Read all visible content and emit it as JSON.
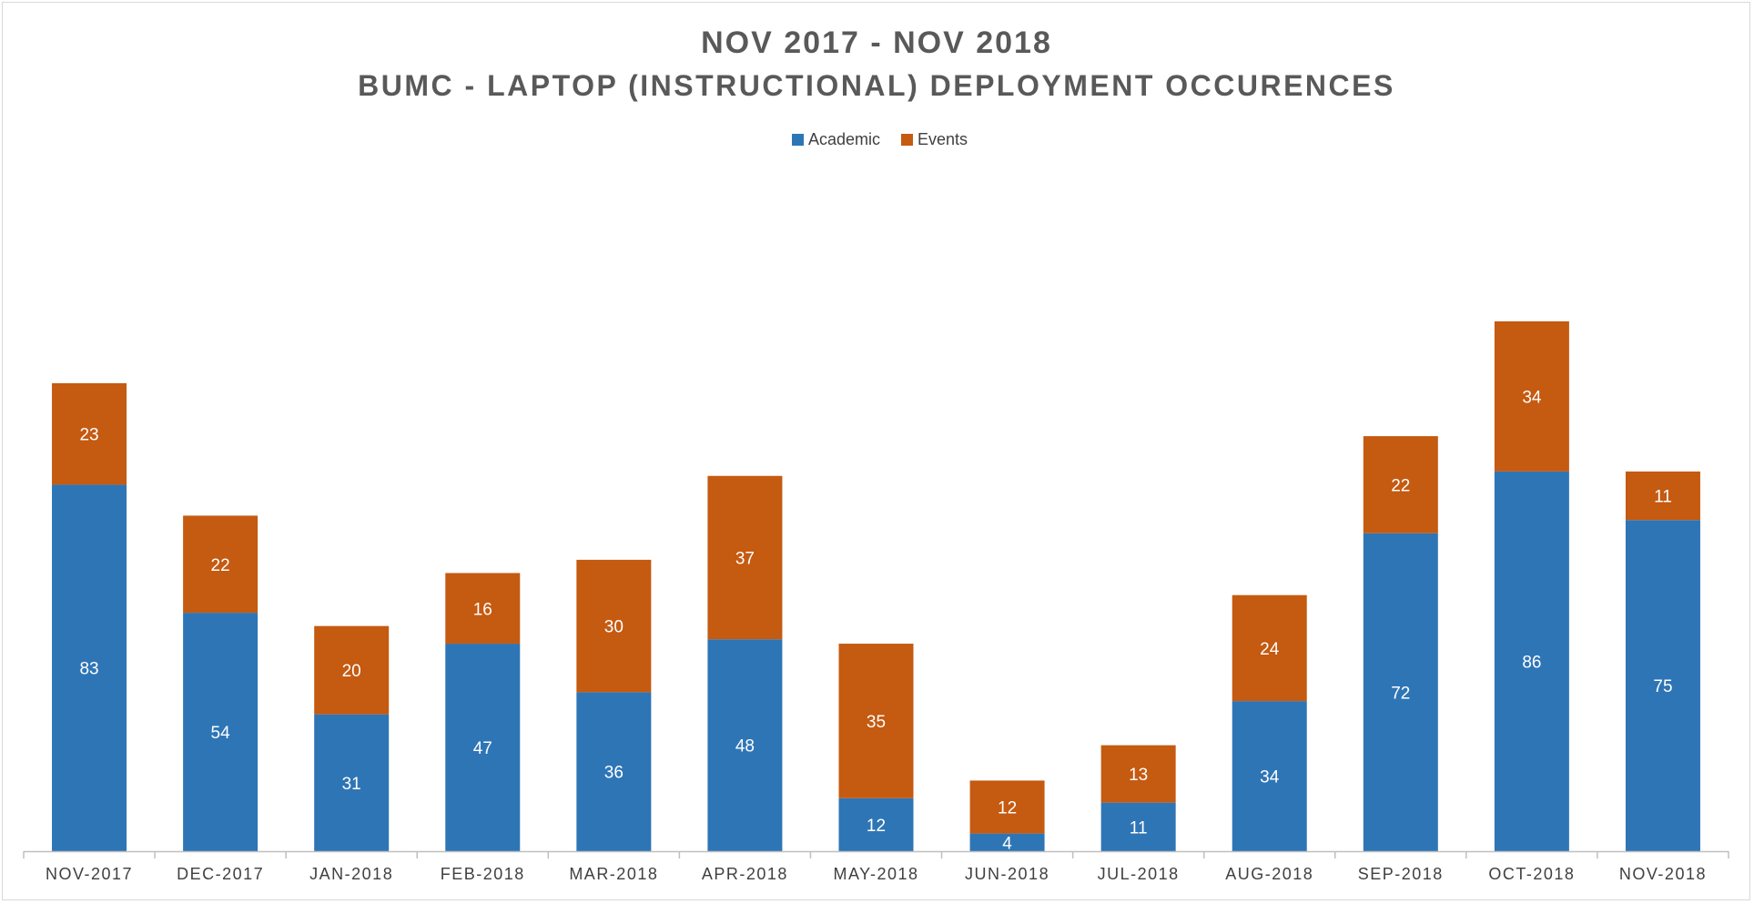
{
  "chart_data": {
    "type": "bar",
    "stacked": true,
    "title": "NOV 2017 - NOV 2018",
    "subtitle": "BUMC - LAPTOP (INSTRUCTIONAL) DEPLOYMENT OCCURENCES",
    "categories": [
      "NOV-2017",
      "DEC-2017",
      "JAN-2018",
      "FEB-2018",
      "MAR-2018",
      "APR-2018",
      "MAY-2018",
      "JUN-2018",
      "JUL-2018",
      "AUG-2018",
      "SEP-2018",
      "OCT-2018",
      "NOV-2018"
    ],
    "series": [
      {
        "name": "Academic",
        "color": "#2E75B6",
        "values": [
          83,
          54,
          31,
          47,
          36,
          48,
          12,
          4,
          11,
          34,
          72,
          86,
          75
        ]
      },
      {
        "name": "Events",
        "color": "#C55A11",
        "values": [
          23,
          22,
          20,
          16,
          30,
          37,
          35,
          12,
          13,
          24,
          22,
          34,
          11
        ]
      }
    ],
    "ylim": [
      0,
      130
    ],
    "legend": "top-center",
    "grid": false,
    "data_labels": true,
    "label_color": "#ffffff",
    "title_color": "#595959",
    "axis_color": "#bfbfbf",
    "tick_label_color": "#404040"
  }
}
